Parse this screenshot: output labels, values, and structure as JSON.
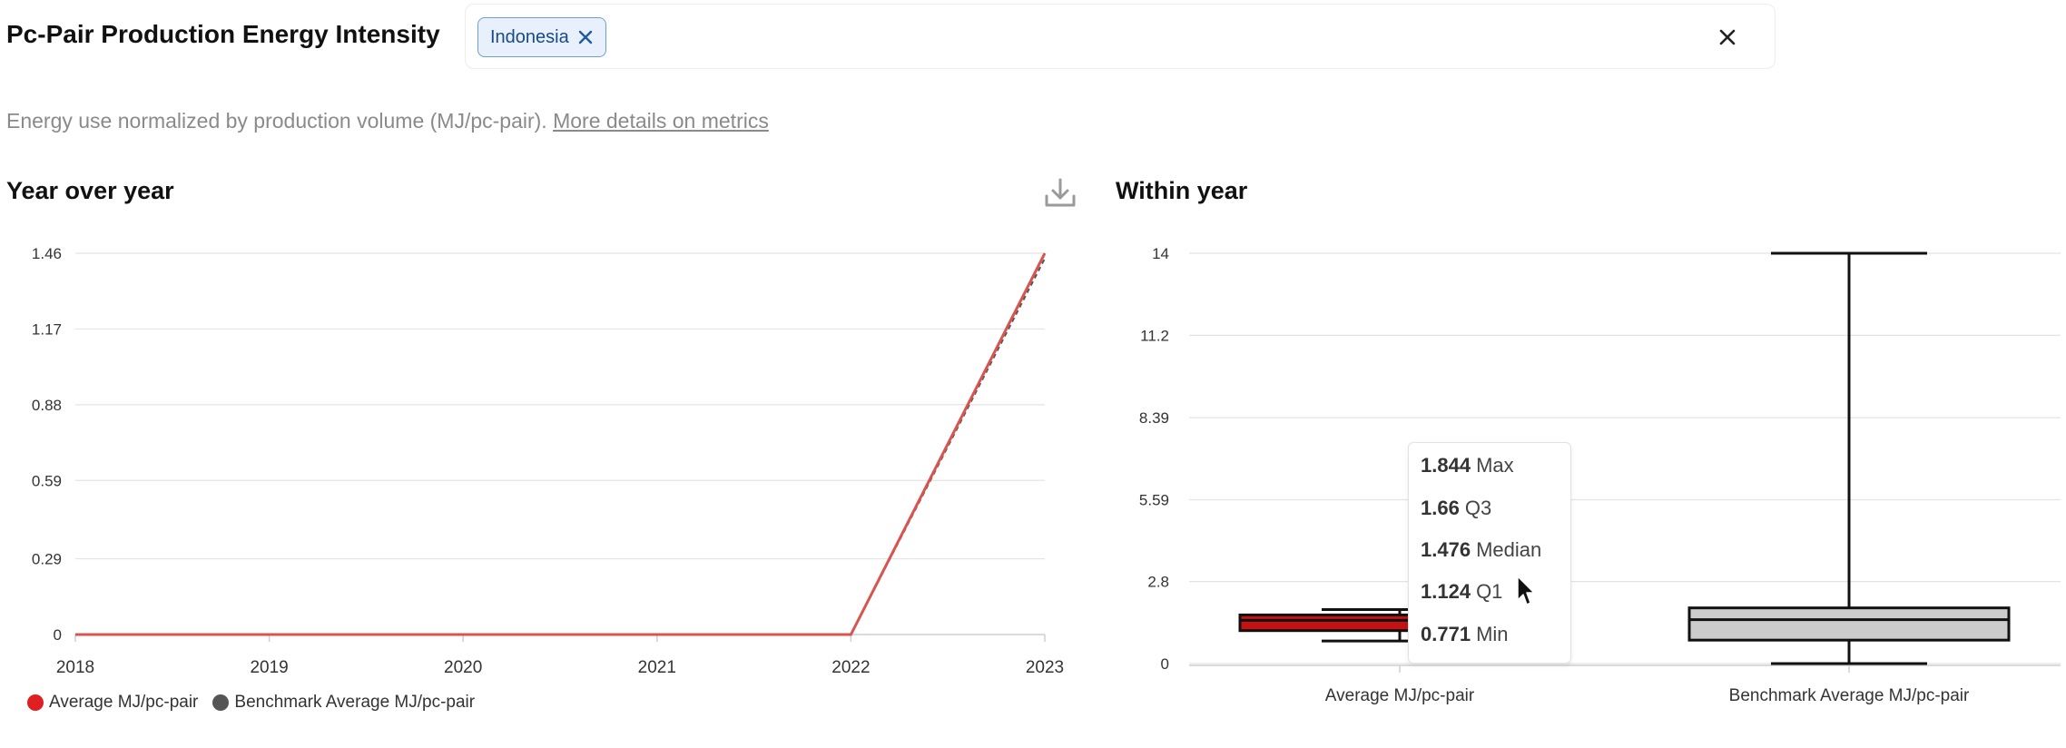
{
  "page": {
    "title": "Pc-Pair Production Energy Intensity",
    "description": "Energy use normalized by production volume (MJ/pc-pair).",
    "details_link": "More details on metrics"
  },
  "filters": {
    "chips": [
      {
        "label": "Indonesia"
      }
    ],
    "clear_icon": "close-icon",
    "chip_remove_icon": "close-icon"
  },
  "sections": {
    "left_title": "Year over year",
    "right_title": "Within year",
    "download_icon": "download-icon"
  },
  "colors": {
    "average": "#e02020",
    "average_line": "#d9534f",
    "benchmark": "#555555",
    "box_average_fill": "#c41212",
    "box_benchmark_fill": "#cccccc",
    "grid": "#e4e4e4"
  },
  "chart_data": [
    {
      "type": "line",
      "title": "Year over year",
      "x": [
        "2018",
        "2019",
        "2020",
        "2021",
        "2022",
        "2023"
      ],
      "y_ticks": [
        "0",
        "0.29",
        "0.59",
        "0.88",
        "1.17",
        "1.46"
      ],
      "ylim": [
        0,
        1.46
      ],
      "grid": true,
      "legend_position": "bottom-left",
      "series": [
        {
          "name": "Average MJ/pc-pair",
          "values": [
            0,
            0,
            0,
            0,
            0,
            1.46
          ]
        },
        {
          "name": "Benchmark Average MJ/pc-pair",
          "values": [
            0,
            0,
            0,
            0,
            0,
            1.44
          ]
        }
      ]
    },
    {
      "type": "box",
      "title": "Within year",
      "categories": [
        "Average MJ/pc-pair",
        "Benchmark Average MJ/pc-pair"
      ],
      "y_ticks": [
        "0",
        "2.8",
        "5.59",
        "8.39",
        "11.2",
        "14"
      ],
      "ylim": [
        0,
        14
      ],
      "grid": true,
      "boxes": [
        {
          "min": 0.771,
          "q1": 1.124,
          "median": 1.476,
          "q3": 1.66,
          "max": 1.844
        },
        {
          "min": 0,
          "q1": 0.8,
          "median": 1.5,
          "q3": 1.9,
          "max": 14
        }
      ],
      "tooltip": [
        {
          "value": "1.844",
          "label": "Max"
        },
        {
          "value": "1.66",
          "label": "Q3"
        },
        {
          "value": "1.476",
          "label": "Median"
        },
        {
          "value": "1.124",
          "label": "Q1"
        },
        {
          "value": "0.771",
          "label": "Min"
        }
      ]
    }
  ]
}
